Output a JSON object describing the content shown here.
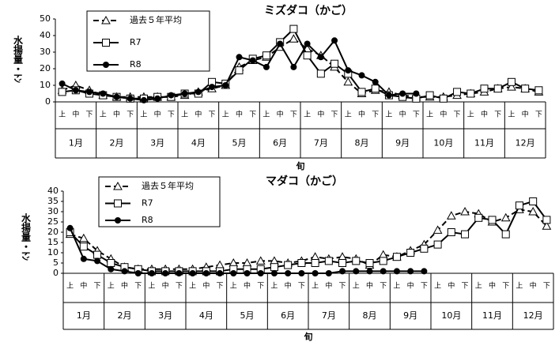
{
  "chart_data": [
    {
      "type": "line",
      "title": "ミズダコ（かご）",
      "y_label": "水揚量・ﾄﾝ",
      "x_label": "旬",
      "categories": [
        "上",
        "中",
        "下",
        "上",
        "中",
        "下",
        "上",
        "中",
        "下",
        "上",
        "中",
        "下",
        "上",
        "中",
        "下",
        "上",
        "中",
        "下",
        "上",
        "中",
        "下",
        "上",
        "中",
        "下",
        "上",
        "中",
        "下",
        "上",
        "中",
        "下",
        "上",
        "中",
        "下",
        "上",
        "中",
        "下"
      ],
      "months": [
        "1月",
        "2月",
        "3月",
        "4月",
        "5月",
        "6月",
        "7月",
        "8月",
        "9月",
        "10月",
        "11月",
        "12月"
      ],
      "ylim": [
        0,
        50
      ],
      "yticks": [
        0,
        10,
        20,
        30,
        40,
        50
      ],
      "series": [
        {
          "name": "過去５年平均",
          "color": "#000000",
          "marker": "triangle",
          "dashed": true,
          "values": [
            7,
            10,
            7,
            4,
            3,
            3,
            3,
            3,
            3,
            4,
            6,
            8,
            10,
            21,
            25,
            27,
            33,
            38,
            32,
            28,
            21,
            12,
            5,
            7,
            6,
            4,
            3,
            3,
            3,
            4,
            5,
            6,
            8,
            9,
            8,
            6
          ]
        },
        {
          "name": "R7",
          "color": "#000000",
          "marker": "square",
          "dashed": false,
          "values": [
            6,
            7,
            5,
            4,
            3,
            2,
            2,
            3,
            3,
            5,
            5,
            12,
            11,
            19,
            26,
            28,
            36,
            44,
            28,
            17,
            23,
            17,
            6,
            8,
            4,
            3,
            2,
            4,
            2,
            6,
            5,
            8,
            8,
            12,
            8,
            7
          ]
        },
        {
          "name": "R8",
          "color": "#000000",
          "marker": "circle",
          "dashed": false,
          "values": [
            11,
            7,
            6,
            5,
            3,
            2,
            1,
            2,
            4,
            5,
            6,
            9,
            10,
            27,
            25,
            21,
            35,
            21,
            35,
            27,
            37,
            19,
            16,
            12,
            4,
            5,
            5,
            null,
            null,
            null,
            null,
            null,
            null,
            null,
            null,
            null
          ]
        }
      ]
    },
    {
      "type": "line",
      "title": "マダコ（かご）",
      "y_label": "水揚量・ﾄﾝ",
      "x_label": "旬",
      "categories": [
        "上",
        "中",
        "下",
        "上",
        "中",
        "下",
        "上",
        "中",
        "下",
        "上",
        "中",
        "下",
        "上",
        "中",
        "下",
        "上",
        "中",
        "下",
        "上",
        "中",
        "下",
        "上",
        "中",
        "下",
        "上",
        "中",
        "下",
        "上",
        "中",
        "下",
        "上",
        "中",
        "下",
        "上",
        "中",
        "下"
      ],
      "months": [
        "1月",
        "2月",
        "3月",
        "4月",
        "5月",
        "6月",
        "7月",
        "8月",
        "9月",
        "10月",
        "11月",
        "12月"
      ],
      "ylim": [
        0,
        40
      ],
      "yticks": [
        0,
        5,
        10,
        15,
        20,
        25,
        30,
        35,
        40
      ],
      "series": [
        {
          "name": "過去５年平均",
          "color": "#000000",
          "marker": "triangle",
          "dashed": true,
          "values": [
            19,
            17,
            11,
            7,
            3,
            2,
            2,
            2,
            2,
            2,
            3,
            4,
            5,
            5,
            6,
            6,
            5,
            6,
            8,
            7,
            8,
            7,
            4,
            9,
            8,
            11,
            14,
            21,
            28,
            30,
            29,
            25,
            27,
            31,
            30,
            23
          ]
        },
        {
          "name": "R7",
          "color": "#000000",
          "marker": "square",
          "dashed": false,
          "values": [
            20,
            13,
            9,
            5,
            3,
            2,
            1,
            1,
            1,
            1,
            1,
            1,
            2,
            2,
            2,
            3,
            4,
            5,
            5,
            6,
            5,
            6,
            5,
            6,
            8,
            10,
            12,
            14,
            20,
            19,
            27,
            26,
            19,
            33,
            35,
            26
          ]
        },
        {
          "name": "R8",
          "color": "#000000",
          "marker": "circle",
          "dashed": false,
          "values": [
            22,
            7,
            6,
            2,
            1,
            0,
            0,
            0,
            0,
            0,
            0,
            0,
            0,
            0,
            0,
            0,
            0,
            0,
            0,
            0,
            1,
            1,
            1,
            1,
            1,
            1,
            1,
            null,
            null,
            null,
            null,
            null,
            null,
            null,
            null,
            null
          ]
        }
      ]
    }
  ]
}
